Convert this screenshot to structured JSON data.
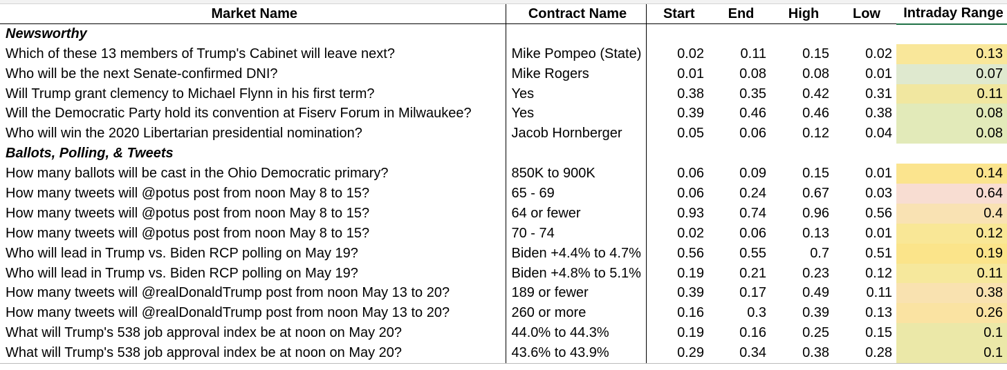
{
  "headers": {
    "market": "Market Name",
    "contract": "Contract Name",
    "start": "Start",
    "end": "End",
    "high": "High",
    "low": "Low",
    "range": "Intraday Range"
  },
  "rows": [
    {
      "type": "section",
      "market": "Newsworthy"
    },
    {
      "type": "data",
      "market": "Which of these 13 members of Trump's Cabinet will leave next?",
      "contract": "Mike Pompeo (State)",
      "start": "0.02",
      "end": "0.11",
      "high": "0.15",
      "low": "0.02",
      "range": "0.13",
      "range_color": "#f9e79a"
    },
    {
      "type": "data",
      "market": "Who will be the next Senate-confirmed DNI?",
      "contract": "Mike Rogers",
      "start": "0.01",
      "end": "0.08",
      "high": "0.08",
      "low": "0.01",
      "range": "0.07",
      "range_color": "#dfe9cf"
    },
    {
      "type": "data",
      "market": "Will Trump grant clemency to Michael Flynn in his first term?",
      "contract": "Yes",
      "start": "0.38",
      "end": "0.35",
      "high": "0.42",
      "low": "0.31",
      "range": "0.11",
      "range_color": "#f1e7a0"
    },
    {
      "type": "data",
      "market": "Will the Democratic Party hold its convention at Fiserv Forum in Milwaukee?",
      "contract": "Yes",
      "start": "0.39",
      "end": "0.46",
      "high": "0.46",
      "low": "0.38",
      "range": "0.08",
      "range_color": "#e2eab9"
    },
    {
      "type": "data",
      "market": "Who will win the 2020 Libertarian presidential nomination?",
      "contract": "Jacob Hornberger",
      "start": "0.05",
      "end": "0.06",
      "high": "0.12",
      "low": "0.04",
      "range": "0.08",
      "range_color": "#e2eab9"
    },
    {
      "type": "section",
      "market": "Ballots, Polling, & Tweets"
    },
    {
      "type": "data",
      "market": "How many ballots will be cast in the Ohio Democratic primary?",
      "contract": "850K to 900K",
      "start": "0.06",
      "end": "0.09",
      "high": "0.15",
      "low": "0.01",
      "range": "0.14",
      "range_color": "#fbe48e"
    },
    {
      "type": "data",
      "market": "How many tweets will @potus post from noon May 8 to 15?",
      "contract": "65 - 69",
      "start": "0.06",
      "end": "0.24",
      "high": "0.67",
      "low": "0.03",
      "range": "0.64",
      "range_color": "#f8ddd2"
    },
    {
      "type": "data",
      "market": "How many tweets will @potus post from noon May 8 to 15?",
      "contract": "64 or fewer",
      "start": "0.93",
      "end": "0.74",
      "high": "0.96",
      "low": "0.56",
      "range": "0.4",
      "range_color": "#f9e2b3"
    },
    {
      "type": "data",
      "market": "How many tweets will @potus post from noon May 8 to 15?",
      "contract": "70 - 74",
      "start": "0.02",
      "end": "0.06",
      "high": "0.13",
      "low": "0.01",
      "range": "0.12",
      "range_color": "#f9e796"
    },
    {
      "type": "data",
      "market": "Who will lead in Trump vs. Biden RCP polling on May 19?",
      "contract": "Biden +4.4% to 4.7%",
      "start": "0.56",
      "end": "0.55",
      "high": "0.7",
      "low": "0.51",
      "range": "0.19",
      "range_color": "#fbe48a"
    },
    {
      "type": "data",
      "market": "Who will lead in Trump vs. Biden RCP polling on May 19?",
      "contract": "Biden +4.8% to 5.1%",
      "start": "0.19",
      "end": "0.21",
      "high": "0.23",
      "low": "0.12",
      "range": "0.11",
      "range_color": "#f6e89c"
    },
    {
      "type": "data",
      "market": "How many tweets will @realDonaldTrump post from noon May 13 to 20?",
      "contract": "189 or fewer",
      "start": "0.39",
      "end": "0.17",
      "high": "0.49",
      "low": "0.11",
      "range": "0.38",
      "range_color": "#f9e2b0"
    },
    {
      "type": "data",
      "market": "How many tweets will @realDonaldTrump post from noon May 13 to 20?",
      "contract": "260 or more",
      "start": "0.16",
      "end": "0.3",
      "high": "0.39",
      "low": "0.13",
      "range": "0.26",
      "range_color": "#fae3a2"
    },
    {
      "type": "data",
      "market": "What will Trump's 538 job approval index be at noon on May 20?",
      "contract": "44.0% to 44.3%",
      "start": "0.19",
      "end": "0.16",
      "high": "0.25",
      "low": "0.15",
      "range": "0.1",
      "range_color": "#ebe8a8"
    },
    {
      "type": "data",
      "market": "What will Trump's 538 job approval index be at noon on May 20?",
      "contract": "43.6% to 43.9%",
      "start": "0.29",
      "end": "0.34",
      "high": "0.38",
      "low": "0.28",
      "range": "0.1",
      "range_color": "#ebe8a8"
    }
  ]
}
